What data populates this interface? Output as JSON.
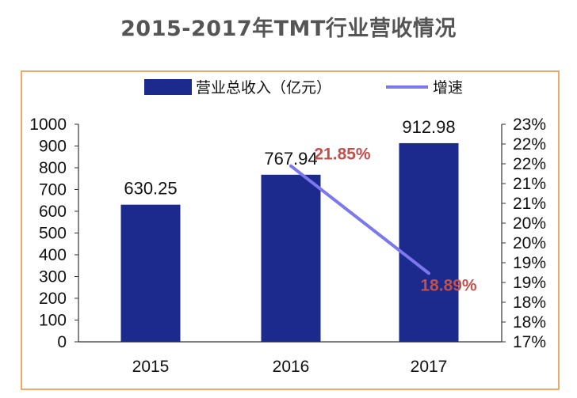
{
  "title": "2015-2017年TMT行业营收情况",
  "colors": {
    "bar": "#1b2a8c",
    "line": "#7b78ee",
    "rate_label": "#c0504d",
    "frame": "#f0a96a"
  },
  "legend": {
    "bar_label": "营业总收入（亿元）",
    "line_label": "增速",
    "position": "top"
  },
  "chart_data": {
    "type": "bar",
    "title": "2015-2017年TMT行业营收情况",
    "categories": [
      "2015",
      "2016",
      "2017"
    ],
    "series": [
      {
        "name": "营业总收入（亿元）",
        "type": "bar",
        "axis": "left",
        "values": [
          630.25,
          767.94,
          912.98
        ],
        "labels": [
          "630.25",
          "767.94",
          "912.98"
        ]
      },
      {
        "name": "增速",
        "type": "line",
        "axis": "right",
        "values": [
          null,
          21.85,
          18.89
        ],
        "labels": [
          "",
          "21.85%",
          "18.89%"
        ]
      }
    ],
    "y_left": {
      "range": [
        0,
        1000
      ],
      "ticks": [
        "0",
        "100",
        "200",
        "300",
        "400",
        "500",
        "600",
        "700",
        "800",
        "900",
        "1000"
      ]
    },
    "y_right": {
      "range": [
        17,
        23
      ],
      "ticks": [
        "17%",
        "18%",
        "18%",
        "19%",
        "19%",
        "20%",
        "20%",
        "21%",
        "21%",
        "22%",
        "22%",
        "23%"
      ]
    },
    "grid": false
  }
}
